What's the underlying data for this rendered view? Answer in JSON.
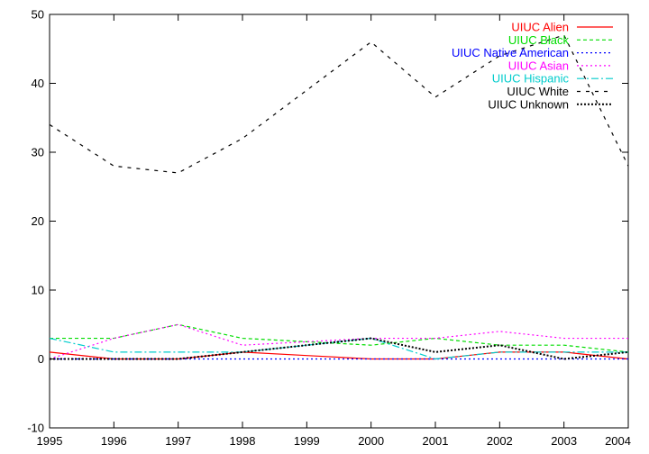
{
  "chart_data": {
    "type": "line",
    "title": "",
    "xlabel": "",
    "ylabel": "",
    "x": [
      1995,
      1996,
      1997,
      1998,
      1999,
      2000,
      2001,
      2002,
      2003,
      2004
    ],
    "xlim": [
      1995,
      2004
    ],
    "ylim": [
      -10,
      50
    ],
    "x_ticks": [
      1995,
      1996,
      1997,
      1998,
      1999,
      2000,
      2001,
      2002,
      2003,
      2004
    ],
    "y_ticks": [
      -10,
      0,
      10,
      20,
      30,
      40,
      50
    ],
    "grid": false,
    "legend_position": "top-right",
    "series": [
      {
        "name": "UIUC Alien",
        "color": "#ff0000",
        "dash": "solid",
        "values": [
          1,
          0,
          0,
          1,
          0.5,
          0,
          0,
          1,
          1,
          0
        ]
      },
      {
        "name": "UIUC Black",
        "color": "#00dd00",
        "dash": "dashed",
        "values": [
          3,
          3,
          5,
          3,
          2.5,
          2,
          3,
          2,
          2,
          1
        ]
      },
      {
        "name": "UIUC Native American",
        "color": "#0000ff",
        "dash": "dotted",
        "values": [
          0,
          0,
          0,
          0,
          0,
          0,
          0,
          0,
          0,
          0
        ]
      },
      {
        "name": "UIUC Asian",
        "color": "#ff00ff",
        "dash": "dotted",
        "values": [
          0,
          3,
          5,
          2,
          2.5,
          3,
          3,
          4,
          3,
          3
        ]
      },
      {
        "name": "UIUC Hispanic",
        "color": "#00cccc",
        "dash": "dashdot",
        "values": [
          3,
          1,
          1,
          1,
          2,
          3,
          0,
          1,
          1,
          1
        ]
      },
      {
        "name": "UIUC White",
        "color": "#000000",
        "dash": "longdash",
        "values": [
          34,
          28,
          27,
          32,
          39,
          46,
          38,
          44,
          47,
          28
        ]
      },
      {
        "name": "UIUC Unknown",
        "color": "#000000",
        "dash": "dense-dotted",
        "values": [
          0,
          0,
          0,
          1,
          2,
          3,
          1,
          2,
          0,
          1
        ]
      }
    ]
  }
}
